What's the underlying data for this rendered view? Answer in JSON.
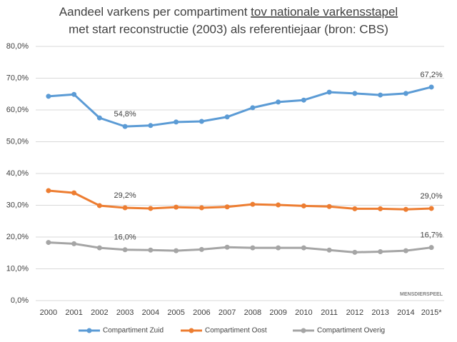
{
  "chart_data": {
    "type": "line",
    "title": {
      "line1": "Aandeel varkens per compartiment",
      "line1_underlined": "tov nationale varkensstapel",
      "line2": "met start reconstructie (2003) als referentiejaar (bron: CBS)"
    },
    "categories": [
      "2000",
      "2001",
      "2002",
      "2003",
      "2004",
      "2005",
      "2006",
      "2007",
      "2008",
      "2009",
      "2010",
      "2011",
      "2012",
      "2013",
      "2014",
      "2015*"
    ],
    "series": [
      {
        "name": "Compartiment Zuid",
        "color": "#5b9bd5",
        "values": [
          64.3,
          64.9,
          57.5,
          54.8,
          55.1,
          56.2,
          56.4,
          57.8,
          60.7,
          62.5,
          63.1,
          65.6,
          65.2,
          64.7,
          65.2,
          67.2
        ],
        "value_labels": [
          null,
          null,
          null,
          "54,8%",
          null,
          null,
          null,
          null,
          null,
          null,
          null,
          null,
          null,
          null,
          null,
          "67,2%"
        ]
      },
      {
        "name": "Compartiment Oost",
        "color": "#ed7d31",
        "values": [
          34.6,
          33.9,
          29.9,
          29.2,
          29.0,
          29.4,
          29.2,
          29.5,
          30.3,
          30.1,
          29.8,
          29.6,
          28.9,
          28.9,
          28.7,
          29.0
        ],
        "value_labels": [
          null,
          null,
          null,
          "29,2%",
          null,
          null,
          null,
          null,
          null,
          null,
          null,
          null,
          null,
          null,
          null,
          "29,0%"
        ]
      },
      {
        "name": "Compartiment Overig",
        "color": "#a5a5a5",
        "values": [
          18.3,
          17.9,
          16.6,
          16.0,
          15.9,
          15.7,
          16.1,
          16.8,
          16.6,
          16.6,
          16.6,
          15.9,
          15.2,
          15.4,
          15.7,
          16.7
        ],
        "value_labels": [
          null,
          null,
          null,
          "16,0%",
          null,
          null,
          null,
          null,
          null,
          null,
          null,
          null,
          null,
          null,
          null,
          "16,7%"
        ]
      }
    ],
    "ylim": [
      0,
      80
    ],
    "yticks": [
      {
        "value": 0,
        "label": "0,0%"
      },
      {
        "value": 10,
        "label": "10,0%"
      },
      {
        "value": 20,
        "label": "20,0%"
      },
      {
        "value": 30,
        "label": "30,0%"
      },
      {
        "value": 40,
        "label": "40,0%"
      },
      {
        "value": 50,
        "label": "50,0%"
      },
      {
        "value": 60,
        "label": "60,0%"
      },
      {
        "value": 70,
        "label": "70,0%"
      },
      {
        "value": 80,
        "label": "80,0%"
      }
    ],
    "grid": true,
    "legend": "bottom",
    "logo_text": "MENSDIERSPEEL"
  }
}
